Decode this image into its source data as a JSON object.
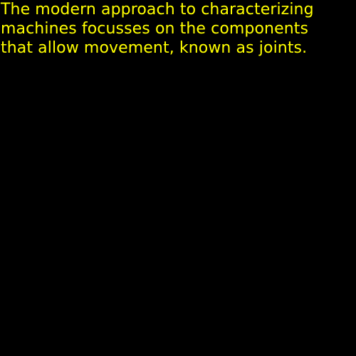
{
  "caption": {
    "lines": [
      "The modern approach to characterizing",
      "machines focusses on the components",
      "that allow movement, known as joints."
    ]
  },
  "colors": {
    "background": "#000000",
    "text": "#ffff00"
  }
}
